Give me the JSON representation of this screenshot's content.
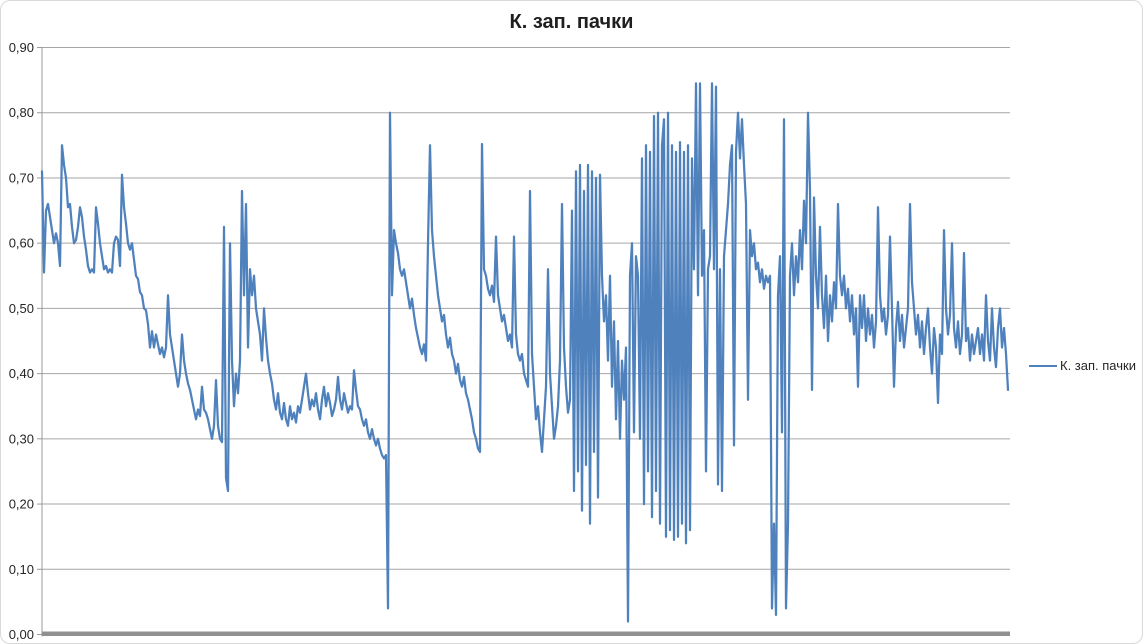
{
  "chart": {
    "title": "К. зап. пачки",
    "legend": {
      "label": "К. зап. пачки",
      "position": "right"
    },
    "colors": {
      "series": "#4F81BD",
      "gridline": "#A6A6A6",
      "axis_line": "#9A9A9A",
      "x_axis_bar": "#909090",
      "title_text": "#1F1F1F",
      "axis_label_text": "#262626",
      "border": "#D9D9D9",
      "background": "#FFFFFF"
    },
    "y_axis_tick_labels_bottom_to_top": [
      "0,00",
      "0,10",
      "0,20",
      "0,30",
      "0,40",
      "0,50",
      "0,60",
      "0,70",
      "0,80",
      "0,90"
    ]
  },
  "chart_data": {
    "type": "line",
    "title": "К. зап. пачки",
    "xlabel": "",
    "ylabel": "",
    "ylim": [
      0.0,
      0.9
    ],
    "ytick_interval": 0.1,
    "ytick_labels": [
      "0,00",
      "0,10",
      "0,20",
      "0,30",
      "0,40",
      "0,50",
      "0,60",
      "0,70",
      "0,80",
      "0,90"
    ],
    "grid": true,
    "legend_position": "right",
    "series": [
      {
        "name": "К. зап. пачки",
        "color": "#4F81BD",
        "values": [
          0.71,
          0.555,
          0.65,
          0.66,
          0.64,
          0.62,
          0.6,
          0.615,
          0.6,
          0.565,
          0.75,
          0.72,
          0.7,
          0.655,
          0.66,
          0.625,
          0.6,
          0.605,
          0.625,
          0.655,
          0.64,
          0.61,
          0.59,
          0.565,
          0.555,
          0.56,
          0.555,
          0.655,
          0.63,
          0.6,
          0.58,
          0.56,
          0.565,
          0.555,
          0.56,
          0.555,
          0.6,
          0.61,
          0.605,
          0.565,
          0.705,
          0.655,
          0.63,
          0.6,
          0.59,
          0.6,
          0.575,
          0.55,
          0.545,
          0.525,
          0.52,
          0.5,
          0.497,
          0.476,
          0.44,
          0.465,
          0.44,
          0.46,
          0.445,
          0.43,
          0.44,
          0.425,
          0.44,
          0.52,
          0.46,
          0.44,
          0.42,
          0.4,
          0.38,
          0.4,
          0.46,
          0.42,
          0.4,
          0.385,
          0.375,
          0.36,
          0.345,
          0.33,
          0.345,
          0.335,
          0.38,
          0.345,
          0.34,
          0.33,
          0.315,
          0.3,
          0.32,
          0.39,
          0.32,
          0.3,
          0.295,
          0.625,
          0.24,
          0.22,
          0.6,
          0.42,
          0.35,
          0.4,
          0.37,
          0.42,
          0.68,
          0.52,
          0.66,
          0.44,
          0.56,
          0.52,
          0.55,
          0.5,
          0.48,
          0.46,
          0.42,
          0.5,
          0.455,
          0.42,
          0.4,
          0.385,
          0.36,
          0.345,
          0.37,
          0.34,
          0.33,
          0.355,
          0.33,
          0.32,
          0.35,
          0.33,
          0.34,
          0.325,
          0.35,
          0.34,
          0.36,
          0.38,
          0.4,
          0.37,
          0.345,
          0.36,
          0.35,
          0.37,
          0.345,
          0.33,
          0.36,
          0.38,
          0.35,
          0.37,
          0.355,
          0.335,
          0.345,
          0.36,
          0.395,
          0.36,
          0.345,
          0.37,
          0.355,
          0.34,
          0.35,
          0.345,
          0.405,
          0.375,
          0.35,
          0.345,
          0.33,
          0.32,
          0.33,
          0.31,
          0.3,
          0.315,
          0.3,
          0.29,
          0.3,
          0.285,
          0.275,
          0.27,
          0.275,
          0.04,
          0.8,
          0.52,
          0.62,
          0.6,
          0.585,
          0.56,
          0.55,
          0.56,
          0.54,
          0.52,
          0.5,
          0.515,
          0.49,
          0.47,
          0.455,
          0.44,
          0.43,
          0.445,
          0.42,
          0.6,
          0.75,
          0.62,
          0.58,
          0.55,
          0.52,
          0.5,
          0.48,
          0.49,
          0.46,
          0.44,
          0.455,
          0.43,
          0.42,
          0.4,
          0.415,
          0.39,
          0.38,
          0.395,
          0.37,
          0.36,
          0.345,
          0.33,
          0.31,
          0.3,
          0.285,
          0.28,
          0.752,
          0.56,
          0.55,
          0.53,
          0.52,
          0.535,
          0.51,
          0.61,
          0.52,
          0.5,
          0.48,
          0.49,
          0.47,
          0.45,
          0.46,
          0.44,
          0.61,
          0.46,
          0.43,
          0.42,
          0.43,
          0.4,
          0.39,
          0.38,
          0.68,
          0.43,
          0.38,
          0.33,
          0.35,
          0.31,
          0.28,
          0.33,
          0.38,
          0.56,
          0.4,
          0.35,
          0.3,
          0.32,
          0.35,
          0.42,
          0.66,
          0.44,
          0.38,
          0.34,
          0.36,
          0.65,
          0.22,
          0.71,
          0.25,
          0.72,
          0.19,
          0.68,
          0.26,
          0.72,
          0.17,
          0.71,
          0.28,
          0.7,
          0.21,
          0.705,
          0.55,
          0.48,
          0.52,
          0.42,
          0.55,
          0.38,
          0.48,
          0.33,
          0.45,
          0.3,
          0.42,
          0.36,
          0.44,
          0.02,
          0.55,
          0.6,
          0.31,
          0.58,
          0.55,
          0.3,
          0.73,
          0.2,
          0.75,
          0.25,
          0.74,
          0.18,
          0.795,
          0.22,
          0.8,
          0.17,
          0.75,
          0.79,
          0.15,
          0.8,
          0.16,
          0.75,
          0.145,
          0.74,
          0.15,
          0.755,
          0.17,
          0.74,
          0.14,
          0.75,
          0.16,
          0.73,
          0.56,
          0.845,
          0.52,
          0.845,
          0.55,
          0.62,
          0.25,
          0.56,
          0.58,
          0.845,
          0.56,
          0.84,
          0.23,
          0.56,
          0.22,
          0.58,
          0.62,
          0.66,
          0.72,
          0.75,
          0.29,
          0.74,
          0.8,
          0.73,
          0.79,
          0.72,
          0.66,
          0.36,
          0.62,
          0.58,
          0.6,
          0.56,
          0.57,
          0.54,
          0.56,
          0.53,
          0.55,
          0.54,
          0.55,
          0.04,
          0.17,
          0.03,
          0.52,
          0.58,
          0.31,
          0.79,
          0.04,
          0.17,
          0.55,
          0.6,
          0.52,
          0.58,
          0.54,
          0.62,
          0.56,
          0.665,
          0.6,
          0.8,
          0.68,
          0.375,
          0.67,
          0.55,
          0.5,
          0.625,
          0.52,
          0.47,
          0.55,
          0.45,
          0.52,
          0.48,
          0.54,
          0.5,
          0.66,
          0.55,
          0.52,
          0.55,
          0.5,
          0.53,
          0.48,
          0.52,
          0.46,
          0.5,
          0.38,
          0.52,
          0.47,
          0.52,
          0.45,
          0.5,
          0.46,
          0.49,
          0.44,
          0.48,
          0.655,
          0.52,
          0.48,
          0.5,
          0.46,
          0.49,
          0.61,
          0.5,
          0.38,
          0.47,
          0.51,
          0.45,
          0.49,
          0.44,
          0.47,
          0.5,
          0.66,
          0.54,
          0.5,
          0.46,
          0.49,
          0.44,
          0.48,
          0.43,
          0.47,
          0.5,
          0.44,
          0.4,
          0.47,
          0.44,
          0.355,
          0.46,
          0.43,
          0.62,
          0.5,
          0.46,
          0.49,
          0.6,
          0.47,
          0.44,
          0.48,
          0.43,
          0.46,
          0.585,
          0.45,
          0.47,
          0.42,
          0.46,
          0.43,
          0.45,
          0.47,
          0.43,
          0.46,
          0.42,
          0.52,
          0.45,
          0.42,
          0.5,
          0.44,
          0.41,
          0.47,
          0.5,
          0.44,
          0.47,
          0.43,
          0.375
        ]
      }
    ]
  }
}
